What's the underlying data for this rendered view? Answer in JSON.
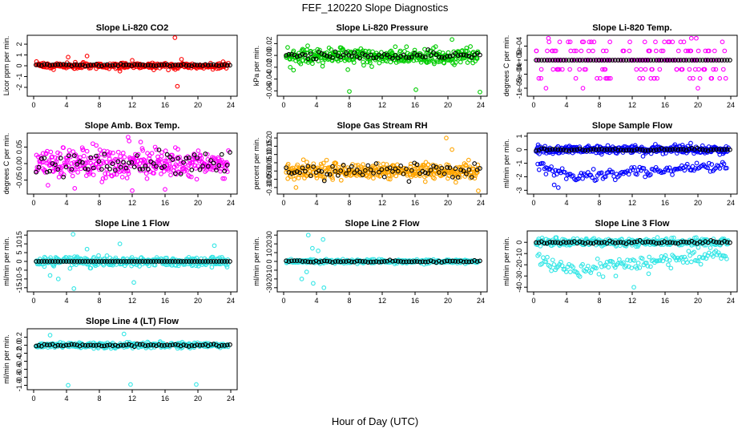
{
  "figure": {
    "title": "FEF_120220  Slope Diagnostics",
    "xlabel": "Hour of Day (UTC)"
  },
  "chart_data": [
    {
      "type": "scatter",
      "title": "Slope Li-820 CO2",
      "ylabel": "Licor ppm per min.",
      "color": "#ff0000",
      "xlim": [
        0,
        24
      ],
      "ylim": [
        -2.6,
        2.6
      ],
      "yticks": [
        -2,
        -1,
        0,
        1,
        2
      ],
      "ytick_labels": [
        "-2",
        "-1",
        "0",
        "1",
        "2"
      ],
      "xticks": [
        0,
        4,
        8,
        12,
        16,
        20,
        24
      ],
      "xtick_labels": [
        "0",
        "4",
        "8",
        "12",
        "16",
        "20",
        "24"
      ],
      "primary": {
        "center": 0.0,
        "spread": 0.25
      },
      "outliers": [
        [
          17.2,
          2.6
        ],
        [
          17.5,
          -1.9
        ],
        [
          18.0,
          0.6
        ],
        [
          4.2,
          0.8
        ],
        [
          6.5,
          0.9
        ],
        [
          12.0,
          0.5
        ],
        [
          10.5,
          -0.5
        ]
      ],
      "black": {
        "center": 0.05,
        "spread": 0.1
      }
    },
    {
      "type": "scatter",
      "title": "Slope Li-820 Pressure",
      "ylabel": "kPa per min.",
      "color": "#00cc00",
      "xlim": [
        0,
        24
      ],
      "ylim": [
        -0.065,
        0.03
      ],
      "yticks": [
        -0.06,
        -0.04,
        -0.02,
        0.0,
        0.02
      ],
      "ytick_labels": [
        "-0.06",
        "-0.04",
        "-0.02",
        "0.00",
        "0.02"
      ],
      "xticks": [
        0,
        4,
        8,
        12,
        16,
        20,
        24
      ],
      "xtick_labels": [
        "0",
        "4",
        "8",
        "12",
        "16",
        "20",
        "24"
      ],
      "primary": {
        "center": -0.002,
        "spread": 0.012
      },
      "outliers": [
        [
          8.0,
          -0.061
        ],
        [
          16.1,
          -0.058
        ],
        [
          23.9,
          -0.062
        ],
        [
          20.5,
          0.027
        ],
        [
          0.8,
          -0.02
        ],
        [
          1.2,
          -0.025
        ]
      ],
      "black": {
        "center": 0.0,
        "spread": 0.006
      }
    },
    {
      "type": "scatter",
      "title": "Slope Li-820 Temp.",
      "ylabel": "degrees C per min.",
      "color": "#ff00ff",
      "xlim": [
        0,
        24
      ],
      "ylim": [
        -0.0012,
        0.0008
      ],
      "yticks": [
        -0.001,
        -0.0005,
        0.0,
        0.0005
      ],
      "ytick_labels": [
        "-1e-03",
        "-5e-04",
        "0e+00",
        "5e-04"
      ],
      "xticks": [
        0,
        4,
        8,
        12,
        16,
        20,
        24
      ],
      "xtick_labels": [
        "0",
        "4",
        "8",
        "12",
        "16",
        "20",
        "24"
      ],
      "levels": [
        0.00065,
        0.00033,
        0.0,
        -0.00033,
        -0.00065,
        -0.001
      ],
      "primary": {
        "center": 0.0,
        "spread": 0.0004
      },
      "outliers": [
        [
          1.8,
          0.00078
        ],
        [
          19.8,
          0.00078
        ],
        [
          19.2,
          0.00078
        ],
        [
          1.5,
          -0.001
        ],
        [
          6.0,
          -0.001
        ],
        [
          20.0,
          -0.001
        ]
      ],
      "black": {
        "center": 0.0,
        "spread": 0.0
      }
    },
    {
      "type": "scatter",
      "title": "Slope Amb. Box Temp.",
      "ylabel": "degrees C per min.",
      "color": "#ff00ff",
      "xlim": [
        0,
        24
      ],
      "ylim": [
        -0.085,
        0.085
      ],
      "yticks": [
        -0.05,
        0.0,
        0.05
      ],
      "ytick_labels": [
        "-0.05",
        "0.00",
        "0.05"
      ],
      "xticks": [
        0,
        4,
        8,
        12,
        16,
        20,
        24
      ],
      "xtick_labels": [
        "0",
        "4",
        "8",
        "12",
        "16",
        "20",
        "24"
      ],
      "primary": {
        "center": 0.0,
        "spread": 0.038
      },
      "outliers": [
        [
          5.0,
          -0.075
        ],
        [
          12.0,
          -0.082
        ],
        [
          16.0,
          -0.078
        ],
        [
          11.5,
          0.08
        ]
      ],
      "black": {
        "center": 0.0,
        "spread": 0.035
      }
    },
    {
      "type": "scatter",
      "title": "Slope Gas Stream RH",
      "ylabel": "percent per min.",
      "color": "#ffa500",
      "xlim": [
        0,
        24
      ],
      "ylim": [
        -0.125,
        0.215
      ],
      "yticks": [
        -0.1,
        -0.05,
        0.0,
        0.05,
        0.1,
        0.15,
        0.2
      ],
      "ytick_labels": [
        "-0.10",
        "-0.05",
        "0.00",
        "0.05",
        "0.10",
        "0.15",
        "0.20"
      ],
      "xticks": [
        0,
        4,
        8,
        12,
        16,
        20,
        24
      ],
      "xtick_labels": [
        "0",
        "4",
        "8",
        "12",
        "16",
        "20",
        "24"
      ],
      "primary": {
        "center": 0.0,
        "spread": 0.045
      },
      "outliers": [
        [
          19.8,
          0.2
        ],
        [
          20.5,
          0.13
        ],
        [
          23.7,
          -0.12
        ],
        [
          1.5,
          -0.1
        ]
      ],
      "black": {
        "center": 0.0,
        "spread": 0.04
      }
    },
    {
      "type": "scatter",
      "title": "Slope Sample Flow",
      "ylabel": "ml/min per min.",
      "color": "#0000ff",
      "xlim": [
        0,
        24
      ],
      "ylim": [
        -3.1,
        1.05
      ],
      "yticks": [
        -3,
        -2,
        -1,
        0,
        1
      ],
      "ytick_labels": [
        "-3",
        "-2",
        "-1",
        "0",
        "1"
      ],
      "xticks": [
        0,
        4,
        8,
        12,
        16,
        20,
        24
      ],
      "xtick_labels": [
        "0",
        "4",
        "8",
        "12",
        "16",
        "20",
        "24"
      ],
      "primary": {
        "center": 0.0,
        "spread": 0.25
      },
      "lower_band": {
        "start": -1.0,
        "mid": -2.0,
        "end": -1.2,
        "spread": 0.3
      },
      "outliers": [
        [
          3.0,
          -2.8
        ],
        [
          2.5,
          -2.6
        ],
        [
          1.5,
          -1.8
        ]
      ],
      "black": {
        "center": 0.0,
        "spread": 0.1
      }
    },
    {
      "type": "scatter",
      "title": "Slope Line 1 Flow",
      "ylabel": "ml/min per min.",
      "color": "#33e6e6",
      "xlim": [
        0,
        24
      ],
      "ylim": [
        -16,
        16
      ],
      "yticks": [
        -15,
        -10,
        -5,
        0,
        5,
        10,
        15
      ],
      "ytick_labels": [
        "-15",
        "-10",
        "-5",
        "0",
        "5",
        "10",
        "15"
      ],
      "xticks": [
        0,
        4,
        8,
        12,
        16,
        20,
        24
      ],
      "xtick_labels": [
        "0",
        "4",
        "8",
        "12",
        "16",
        "20",
        "24"
      ],
      "primary": {
        "center": 0.0,
        "spread": 2.5
      },
      "outliers": [
        [
          4.8,
          15.5
        ],
        [
          4.9,
          -15.5
        ],
        [
          12.2,
          -12
        ],
        [
          2.0,
          -8
        ],
        [
          3.0,
          -10
        ],
        [
          10.5,
          10
        ],
        [
          22.0,
          9
        ],
        [
          6.5,
          7
        ]
      ],
      "black": {
        "center": 0.0,
        "spread": 0.0
      }
    },
    {
      "type": "scatter",
      "title": "Slope Line 2 Flow",
      "ylabel": "ml/min per min.",
      "color": "#33e6e6",
      "xlim": [
        0,
        24
      ],
      "ylim": [
        -32,
        32
      ],
      "yticks": [
        -30,
        -20,
        -10,
        0,
        10,
        20,
        30
      ],
      "ytick_labels": [
        "-30",
        "-20",
        "-10",
        "0",
        "10",
        "20",
        "30"
      ],
      "xticks": [
        0,
        4,
        8,
        12,
        16,
        20,
        24
      ],
      "xtick_labels": [
        "0",
        "4",
        "8",
        "12",
        "16",
        "20",
        "24"
      ],
      "primary": {
        "center": 0.0,
        "spread": 2.0
      },
      "outliers": [
        [
          3.0,
          30
        ],
        [
          4.8,
          25
        ],
        [
          2.2,
          -20
        ],
        [
          3.6,
          -25
        ],
        [
          4.9,
          -30
        ],
        [
          3.5,
          15
        ],
        [
          4.2,
          12
        ],
        [
          2.8,
          -12
        ]
      ],
      "black": {
        "center": 0.0,
        "spread": 1.0
      }
    },
    {
      "type": "scatter",
      "title": "Slope Line 3 Flow",
      "ylabel": "ml/min per min.",
      "color": "#33e6e6",
      "xlim": [
        0,
        24
      ],
      "ylim": [
        -42,
        8
      ],
      "yticks": [
        -40,
        -30,
        -20,
        -10,
        0
      ],
      "ytick_labels": [
        "-40",
        "-30",
        "-20",
        "-10",
        "0"
      ],
      "xticks": [
        0,
        4,
        8,
        12,
        16,
        20,
        24
      ],
      "xtick_labels": [
        "0",
        "4",
        "8",
        "12",
        "16",
        "20",
        "24"
      ],
      "primary": {
        "center": 0.0,
        "spread": 3.0
      },
      "lower_band": {
        "start": -15,
        "mid": -25,
        "end": -10,
        "spread": 5
      },
      "outliers": [
        [
          12.2,
          -40
        ],
        [
          10.0,
          -30
        ],
        [
          14.0,
          -28
        ]
      ],
      "black": {
        "center": 0.0,
        "spread": 1.5
      }
    },
    {
      "type": "scatter",
      "title": "Slope Line 4 (LT) Flow",
      "ylabel": "ml/min per min.",
      "color": "#33e6e6",
      "xlim": [
        0,
        24
      ],
      "ylim": [
        -1.05,
        0.35
      ],
      "yticks": [
        -1.0,
        -0.8,
        -0.6,
        -0.4,
        -0.2,
        0.0,
        0.2
      ],
      "ytick_labels": [
        "-1.0",
        "-0.8",
        "-0.6",
        "-0.4",
        "-0.2",
        "0.0",
        "0.2"
      ],
      "xticks": [
        0,
        4,
        8,
        12,
        16,
        20,
        24
      ],
      "xtick_labels": [
        "0",
        "4",
        "8",
        "12",
        "16",
        "20",
        "24"
      ],
      "primary": {
        "center": 0.0,
        "spread": 0.06
      },
      "outliers": [
        [
          4.2,
          -1.0
        ],
        [
          11.8,
          -0.98
        ],
        [
          19.8,
          -0.98
        ],
        [
          2.0,
          0.25
        ],
        [
          11.0,
          0.28
        ]
      ],
      "black": {
        "center": 0.0,
        "spread": 0.03
      }
    }
  ]
}
